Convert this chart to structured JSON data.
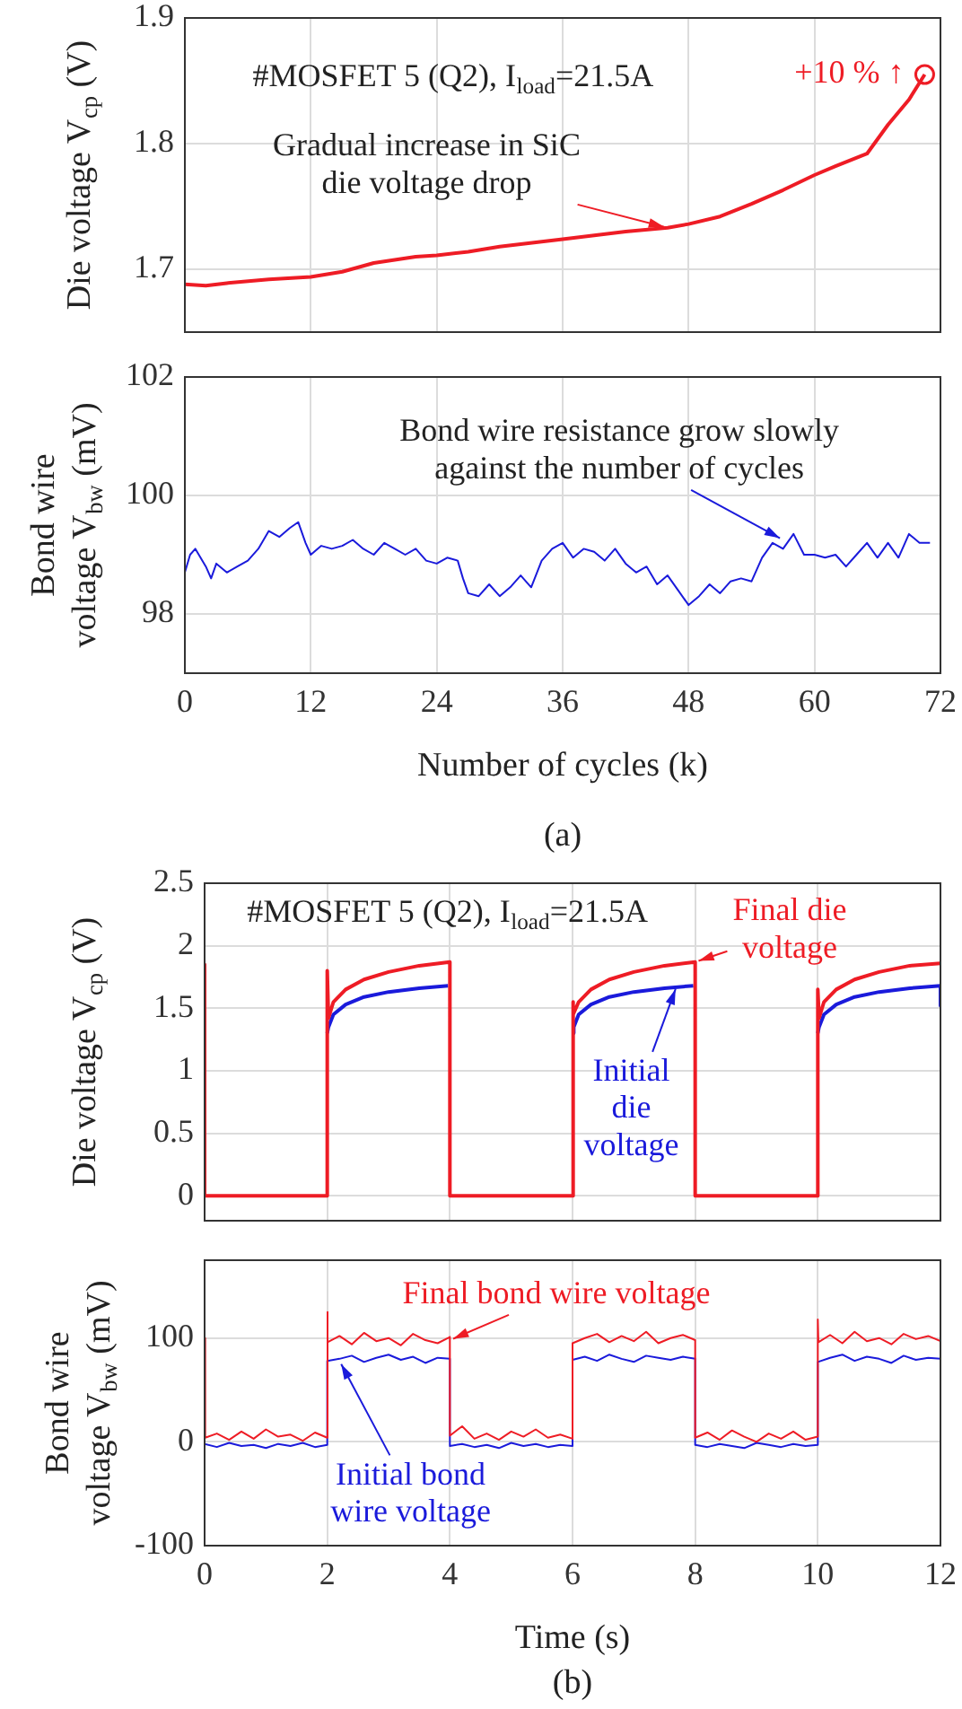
{
  "chart_data": [
    {
      "type": "line",
      "title": "#MOSFET 5 (Q2), I$_{load}$=21.5A",
      "ylabel": "Die voltage V$_{cp}$ (V)",
      "xlim": [
        0,
        72
      ],
      "xticks": [
        0,
        12,
        24,
        36,
        48,
        60,
        72
      ],
      "ylim": [
        1.65,
        1.9
      ],
      "yticks": [
        1.7,
        1.8,
        1.9
      ],
      "grid": true,
      "tick_labels": "y",
      "marker": "none",
      "line_style": "solid",
      "series": [
        {
          "color": "#ee1c25",
          "x": [
            0,
            2,
            4,
            8,
            12,
            15,
            18,
            22,
            24,
            27,
            30,
            36,
            42,
            46,
            48,
            51,
            54,
            57,
            60,
            62,
            65,
            67,
            69,
            70.5
          ],
          "values": [
            1.688,
            1.687,
            1.689,
            1.692,
            1.694,
            1.698,
            1.705,
            1.71,
            1.711,
            1.714,
            1.718,
            1.724,
            1.73,
            1.733,
            1.736,
            1.742,
            1.752,
            1.763,
            1.775,
            1.782,
            1.792,
            1.815,
            1.835,
            1.855
          ]
        },
        {
          "type": "scatter",
          "marker": "circle",
          "color": "#ee1c25",
          "x": [
            70.5
          ],
          "values": [
            1.855
          ]
        }
      ],
      "annotations": [
        {
          "text": "Gradual increase in SiC\ndie voltage drop",
          "x": 46,
          "y": 1.733
        },
        {
          "text": "+10 % ↑",
          "x": 70.5,
          "y": 1.855
        }
      ]
    },
    {
      "type": "line",
      "xlabel": "Number of cycles (k)",
      "ylabel": "Bond wire\nvoltage V$_{bw}$ (mV)",
      "xlim": [
        0,
        72
      ],
      "xticks": [
        0,
        12,
        24,
        36,
        48,
        60,
        72
      ],
      "ylim": [
        97,
        102
      ],
      "yticks": [
        98,
        100,
        102
      ],
      "grid": true,
      "marker": "none",
      "line_style": "solid",
      "series": [
        {
          "color": "#1a1adb",
          "x": [
            0,
            0.5,
            1,
            2,
            2.5,
            3,
            4,
            5,
            6,
            7,
            8,
            9,
            10,
            10.8,
            11.5,
            12,
            13,
            14,
            15,
            16,
            17,
            18,
            19,
            20,
            21,
            22,
            23,
            24,
            25,
            26,
            26.5,
            27,
            28,
            29,
            30,
            31,
            32,
            33,
            34,
            35,
            36,
            37,
            38,
            39,
            40,
            41,
            42,
            43,
            44,
            45,
            46,
            47,
            48,
            49,
            50,
            51,
            52,
            53,
            54,
            55,
            56,
            57,
            58,
            59,
            60,
            61,
            62,
            63,
            64,
            65,
            66,
            67,
            68,
            69,
            70,
            71
          ],
          "values": [
            98.7,
            99.0,
            99.1,
            98.8,
            98.6,
            98.85,
            98.7,
            98.8,
            98.9,
            99.1,
            99.4,
            99.3,
            99.45,
            99.55,
            99.2,
            99.0,
            99.15,
            99.1,
            99.15,
            99.25,
            99.1,
            99.0,
            99.2,
            99.1,
            99.0,
            99.1,
            98.9,
            98.85,
            98.95,
            98.9,
            98.6,
            98.35,
            98.3,
            98.5,
            98.3,
            98.45,
            98.65,
            98.45,
            98.9,
            99.1,
            99.2,
            98.95,
            99.1,
            99.05,
            98.9,
            99.1,
            98.85,
            98.7,
            98.8,
            98.5,
            98.65,
            98.4,
            98.15,
            98.3,
            98.5,
            98.35,
            98.55,
            98.6,
            98.55,
            98.95,
            99.2,
            99.1,
            99.35,
            99.0,
            99.0,
            98.95,
            99.0,
            98.8,
            99.0,
            99.2,
            98.95,
            99.2,
            98.95,
            99.35,
            99.2,
            99.2
          ]
        }
      ],
      "annotations": [
        {
          "text": "Bond wire resistance grow slowly\nagainst the number of cycles",
          "x": 57,
          "y": 99.25
        },
        "(a)"
      ]
    },
    {
      "type": "line",
      "title": "#MOSFET 5 (Q2), I$_{load}$=21.5A",
      "ylabel": "Die voltage V$_{cp}$ (V)",
      "xlim": [
        0,
        12
      ],
      "xticks": [
        0,
        2,
        4,
        6,
        8,
        10,
        12
      ],
      "ylim": [
        -0.2,
        2.5
      ],
      "yticks": [
        0,
        0.5,
        1,
        1.5,
        2,
        2.5
      ],
      "grid": true,
      "tick_labels": "y",
      "marker": "none",
      "line_style": "solid",
      "series": [
        {
          "color": "#ee1c25",
          "x": [
            0,
            0,
            2,
            2,
            2.02,
            2.1,
            2.3,
            2.6,
            3,
            3.5,
            4,
            4,
            6,
            6,
            6.02,
            6.1,
            6.3,
            6.6,
            7,
            7.5,
            8,
            8,
            10,
            10,
            10.02,
            10.1,
            10.3,
            10.6,
            11,
            11.5,
            12
          ],
          "values": [
            1.85,
            0,
            0,
            1.8,
            1.42,
            1.55,
            1.65,
            1.73,
            1.79,
            1.84,
            1.87,
            0,
            0,
            1.55,
            1.45,
            1.55,
            1.65,
            1.73,
            1.79,
            1.84,
            1.87,
            0,
            0,
            1.65,
            1.42,
            1.55,
            1.65,
            1.73,
            1.79,
            1.84,
            1.86
          ]
        },
        {
          "color": "#1a1adb",
          "x": [
            2,
            2.02,
            2.1,
            2.3,
            2.6,
            3,
            3.5,
            3.97,
            5,
            6,
            6.02,
            6.1,
            6.3,
            6.6,
            7,
            7.5,
            7.97,
            9,
            10,
            10.02,
            10.1,
            10.3,
            10.6,
            11,
            11.5,
            12,
            12
          ],
          "values": [
            1.3,
            1.35,
            1.45,
            1.53,
            1.59,
            1.63,
            1.66,
            1.68,
            null,
            1.3,
            1.35,
            1.45,
            1.53,
            1.59,
            1.63,
            1.66,
            1.68,
            null,
            1.3,
            1.35,
            1.45,
            1.53,
            1.59,
            1.63,
            1.66,
            1.68,
            1.52
          ]
        }
      ],
      "annotations": [
        {
          "text": "Final die\nvoltage",
          "x": 8,
          "y": 1.87
        },
        {
          "text": "Initial\ndie\nvoltage",
          "x": 7.7,
          "y": 1.68
        }
      ]
    },
    {
      "type": "line",
      "xlabel": "Time (s)",
      "ylabel": "Bond wire\nvoltage V$_{bw}$ (mV)",
      "xlim": [
        0,
        12
      ],
      "xticks": [
        0,
        2,
        4,
        6,
        8,
        10,
        12
      ],
      "ylim": [
        -100,
        175
      ],
      "yticks": [
        -100,
        0,
        100
      ],
      "grid": true,
      "marker": "none",
      "line_style": "solid",
      "series": [
        {
          "color": "#ee1c25",
          "x": [
            0,
            0.01,
            0.2,
            0.4,
            0.6,
            0.8,
            1,
            1.2,
            1.4,
            1.6,
            1.8,
            2,
            2,
            2.01,
            2.2,
            2.4,
            2.6,
            2.8,
            3,
            3.2,
            3.4,
            3.6,
            3.8,
            4,
            4,
            4.2,
            4.4,
            4.6,
            4.8,
            5,
            5.2,
            5.4,
            5.6,
            5.8,
            6,
            6,
            6.2,
            6.4,
            6.6,
            6.8,
            7,
            7.2,
            7.4,
            7.6,
            7.8,
            8,
            8,
            8.2,
            8.4,
            8.6,
            8.8,
            9,
            9.2,
            9.4,
            9.6,
            9.8,
            10,
            10,
            10.01,
            10.2,
            10.4,
            10.6,
            10.8,
            11,
            11.2,
            11.4,
            11.6,
            11.8,
            12
          ],
          "values": [
            100,
            4,
            8,
            2,
            10,
            3,
            12,
            5,
            7,
            1,
            9,
            4,
            125,
            96,
            102,
            94,
            105,
            97,
            100,
            93,
            104,
            98,
            95,
            101,
            6,
            15,
            3,
            8,
            2,
            10,
            5,
            12,
            4,
            7,
            3,
            95,
            100,
            104,
            96,
            102,
            97,
            106,
            95,
            100,
            103,
            98,
            4,
            9,
            2,
            11,
            5,
            0,
            8,
            3,
            10,
            2,
            5,
            118,
            96,
            103,
            95,
            106,
            97,
            100,
            94,
            104,
            99,
            102,
            97
          ]
        },
        {
          "color": "#1a1adb",
          "x": [
            0,
            0.2,
            0.4,
            0.6,
            0.8,
            1,
            1.2,
            1.4,
            1.6,
            1.8,
            2,
            2,
            2.2,
            2.4,
            2.6,
            2.8,
            3,
            3.2,
            3.4,
            3.6,
            3.8,
            4,
            4,
            4.2,
            4.4,
            4.6,
            4.8,
            5,
            5.2,
            5.4,
            5.6,
            5.8,
            6,
            6,
            6.2,
            6.4,
            6.6,
            6.8,
            7,
            7.2,
            7.4,
            7.6,
            7.8,
            8,
            8,
            8.2,
            8.4,
            8.6,
            8.8,
            9,
            9.2,
            9.4,
            9.6,
            9.8,
            10,
            10,
            10.2,
            10.4,
            10.6,
            10.8,
            11,
            11.2,
            11.4,
            11.6,
            11.8,
            12
          ],
          "values": [
            -2,
            -5,
            -1,
            -4,
            -3,
            -6,
            -2,
            -4,
            -1,
            -5,
            -3,
            78,
            80,
            83,
            77,
            81,
            84,
            79,
            82,
            76,
            81,
            80,
            -4,
            -2,
            -5,
            -3,
            -6,
            -1,
            -4,
            -2,
            -5,
            -3,
            -4,
            79,
            82,
            78,
            84,
            80,
            77,
            83,
            81,
            79,
            82,
            80,
            -3,
            -5,
            -2,
            -4,
            -6,
            -1,
            -3,
            -5,
            -2,
            -4,
            -3,
            77,
            81,
            84,
            78,
            82,
            80,
            76,
            83,
            79,
            81,
            80
          ]
        }
      ],
      "annotations": [
        {
          "text": "Final bond wire voltage",
          "x": 4,
          "y": 98
        },
        {
          "text": "Initial bond\nwire voltage",
          "x": 2.2,
          "y": 78
        },
        "(b)"
      ]
    }
  ]
}
